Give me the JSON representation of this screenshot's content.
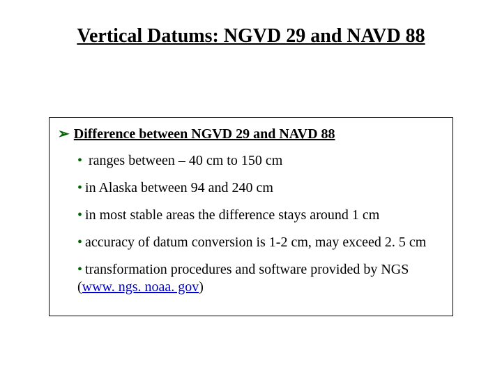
{
  "title": "Vertical Datums: NGVD 29 and NAVD 88",
  "section_heading": "Difference between NGVD 29 and NAVD 88",
  "arrow_glyph": "➢",
  "bullet_glyph": "•",
  "bullets": {
    "b0": " ranges between – 40 cm to 150 cm",
    "b1": "in Alaska between 94 and  240 cm",
    "b2": "in most stable areas the difference stays around 1 cm",
    "b3": "accuracy of datum conversion is 1-2 cm, may exceed 2. 5 cm",
    "b4_prefix": "transformation procedures and software provided by NGS",
    "b4_paren_open": "(",
    "b4_link": "www. ngs. noaa. gov",
    "b4_paren_close": ")"
  },
  "colors": {
    "accent": "#006400",
    "link": "#0000cc",
    "text": "#000000",
    "background": "#ffffff",
    "border": "#000000"
  },
  "typography": {
    "title_fontsize": 28,
    "body_fontsize": 20,
    "font_family": "Times New Roman"
  }
}
